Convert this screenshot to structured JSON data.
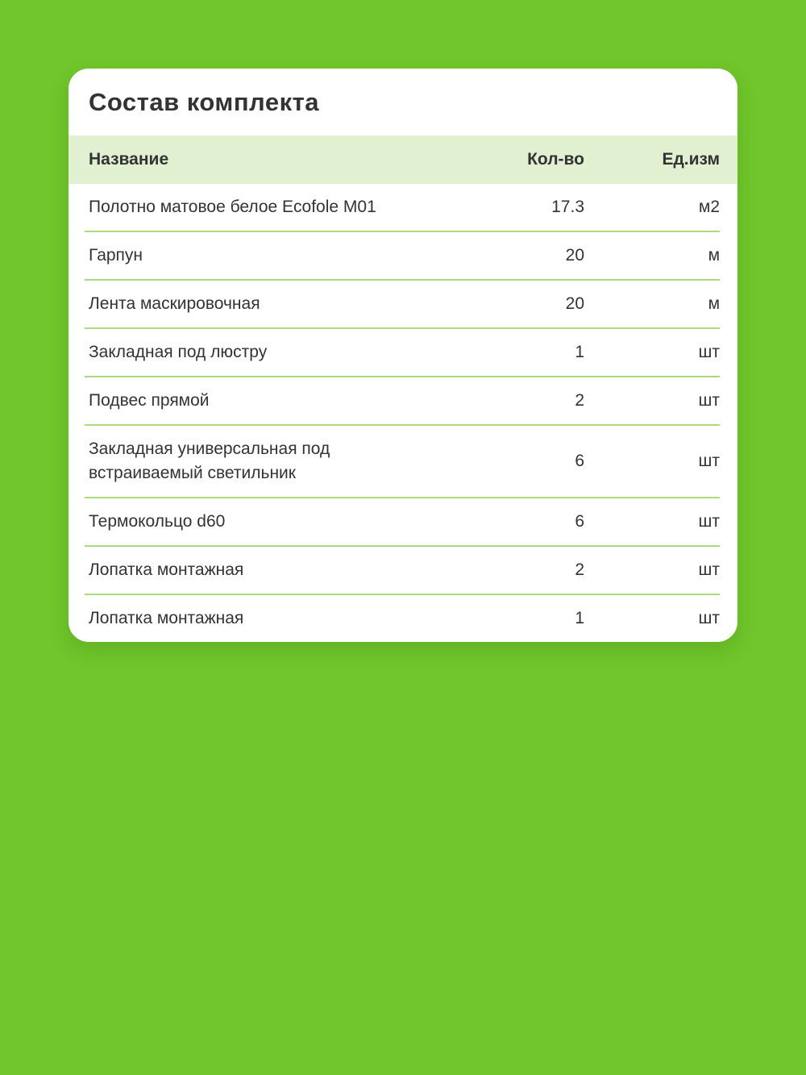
{
  "colors": {
    "background": "#70c62a",
    "card": "#ffffff",
    "header_row_bg": "#e2f0d2",
    "divider": "#aadc7c",
    "text": "#333333"
  },
  "card": {
    "title": "Состав комплекта",
    "table": {
      "columns": [
        {
          "key": "name",
          "label": "Название"
        },
        {
          "key": "qty",
          "label": "Кол-во"
        },
        {
          "key": "unit",
          "label": "Ед.изм"
        }
      ],
      "rows": [
        {
          "name": "Полотно матовое белое Ecofole M01",
          "qty": "17.3",
          "unit": "м2"
        },
        {
          "name": "Гарпун",
          "qty": "20",
          "unit": "м"
        },
        {
          "name": "Лента маскировочная",
          "qty": "20",
          "unit": "м"
        },
        {
          "name": "Закладная под люстру",
          "qty": "1",
          "unit": "шт"
        },
        {
          "name": "Подвес прямой",
          "qty": "2",
          "unit": "шт"
        },
        {
          "name": "Закладная универсальная под\nвстраиваемый светильник",
          "qty": "6",
          "unit": "шт"
        },
        {
          "name": "Термокольцо d60",
          "qty": "6",
          "unit": "шт"
        },
        {
          "name": "Лопатка монтажная",
          "qty": "2",
          "unit": "шт"
        },
        {
          "name": "Лопатка монтажная",
          "qty": "1",
          "unit": "шт"
        }
      ]
    }
  }
}
